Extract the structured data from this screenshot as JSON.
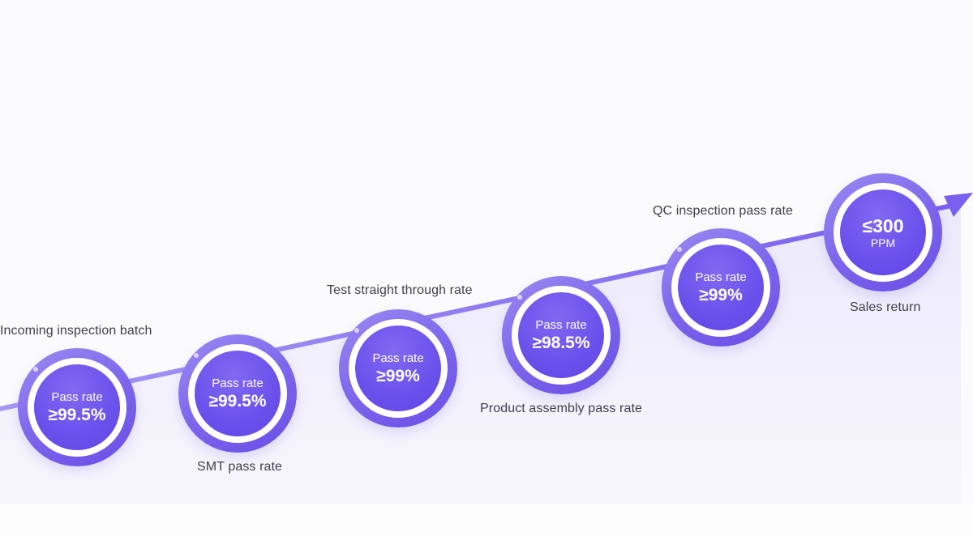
{
  "stages": [
    {
      "label": "Incoming inspection batch",
      "caption": "Pass rate",
      "value": "≥99.5%"
    },
    {
      "label": "SMT pass rate",
      "caption": "Pass rate",
      "value": "≥99.5%"
    },
    {
      "label": "Test straight through rate",
      "caption": "Pass rate",
      "value": "≥99%"
    },
    {
      "label": "Product assembly pass rate",
      "caption": "Pass rate",
      "value": "≥98.5%"
    },
    {
      "label": "QC inspection pass rate",
      "caption": "Pass rate",
      "value": "≥99%"
    },
    {
      "label": "Sales return",
      "value": "≤300",
      "unit": "PPM"
    }
  ],
  "colors": {
    "accent": "#6c52ec",
    "accent_light": "#9b8bf2",
    "label_text": "#3f3f48",
    "area_fill": "#efedfc"
  }
}
